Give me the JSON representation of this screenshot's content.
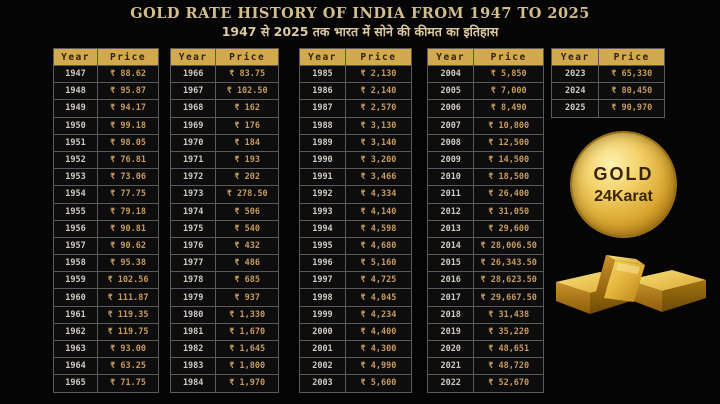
{
  "header": {
    "title": "GOLD RATE HISTORY OF INDIA FROM 1947 TO 2025",
    "subtitle": "1947 से 2025 तक भारत में सोने की कीमत का इतिहास"
  },
  "badge": {
    "line1": "GOLD",
    "line2": "24Karat"
  },
  "colors": {
    "background": "#050505",
    "title_text": "#d3bd8d",
    "subtitle_text": "#dcc9a0",
    "header_bg": "#d2a94f",
    "header_text": "#33230a",
    "year_text": "#cfc9c0",
    "price_text": "#c69a5e",
    "border": "#5a5a5a",
    "badge_text": "#3a2605"
  },
  "chart_data": {
    "type": "table",
    "title": "GOLD RATE HISTORY OF INDIA FROM 1947 TO 2025",
    "subtitle": "1947 से 2025 तक भारत में सोने की कीमत का इतिहास",
    "columns": [
      "Year",
      "Price"
    ],
    "tables": [
      {
        "year_range": "1947-1965",
        "rows": [
          [
            "1947",
            "₹ 88.62"
          ],
          [
            "1948",
            "₹ 95.87"
          ],
          [
            "1949",
            "₹ 94.17"
          ],
          [
            "1950",
            "₹ 99.18"
          ],
          [
            "1951",
            "₹ 98.05"
          ],
          [
            "1952",
            "₹ 76.81"
          ],
          [
            "1953",
            "₹ 73.06"
          ],
          [
            "1954",
            "₹ 77.75"
          ],
          [
            "1955",
            "₹ 79.18"
          ],
          [
            "1956",
            "₹ 90.81"
          ],
          [
            "1957",
            "₹ 90.62"
          ],
          [
            "1958",
            "₹ 95.38"
          ],
          [
            "1959",
            "₹ 102.56"
          ],
          [
            "1960",
            "₹ 111.87"
          ],
          [
            "1961",
            "₹ 119.35"
          ],
          [
            "1962",
            "₹ 119.75"
          ],
          [
            "1963",
            "₹ 93.00"
          ],
          [
            "1964",
            "₹ 63.25"
          ],
          [
            "1965",
            "₹ 71.75"
          ]
        ]
      },
      {
        "year_range": "1966-1984",
        "rows": [
          [
            "1966",
            "₹ 83.75"
          ],
          [
            "1967",
            "₹ 102.50"
          ],
          [
            "1968",
            "₹ 162"
          ],
          [
            "1969",
            "₹ 176"
          ],
          [
            "1970",
            "₹ 184"
          ],
          [
            "1971",
            "₹ 193"
          ],
          [
            "1972",
            "₹ 202"
          ],
          [
            "1973",
            "₹ 278.50"
          ],
          [
            "1974",
            "₹ 506"
          ],
          [
            "1975",
            "₹ 540"
          ],
          [
            "1976",
            "₹ 432"
          ],
          [
            "1977",
            "₹ 486"
          ],
          [
            "1978",
            "₹ 685"
          ],
          [
            "1979",
            "₹ 937"
          ],
          [
            "1980",
            "₹ 1,330"
          ],
          [
            "1981",
            "₹ 1,670"
          ],
          [
            "1982",
            "₹ 1,645"
          ],
          [
            "1983",
            "₹ 1,800"
          ],
          [
            "1984",
            "₹ 1,970"
          ]
        ]
      },
      {
        "year_range": "1985-2003",
        "rows": [
          [
            "1985",
            "₹ 2,130"
          ],
          [
            "1986",
            "₹ 2,140"
          ],
          [
            "1987",
            "₹ 2,570"
          ],
          [
            "1988",
            "₹ 3,130"
          ],
          [
            "1989",
            "₹ 3,140"
          ],
          [
            "1990",
            "₹ 3,200"
          ],
          [
            "1991",
            "₹ 3,466"
          ],
          [
            "1992",
            "₹ 4,334"
          ],
          [
            "1993",
            "₹ 4,140"
          ],
          [
            "1994",
            "₹ 4,598"
          ],
          [
            "1995",
            "₹ 4,680"
          ],
          [
            "1996",
            "₹ 5,160"
          ],
          [
            "1997",
            "₹ 4,725"
          ],
          [
            "1998",
            "₹ 4,045"
          ],
          [
            "1999",
            "₹ 4,234"
          ],
          [
            "2000",
            "₹ 4,400"
          ],
          [
            "2001",
            "₹ 4,300"
          ],
          [
            "2002",
            "₹ 4,990"
          ],
          [
            "2003",
            "₹ 5,600"
          ]
        ]
      },
      {
        "year_range": "2004-2022",
        "rows": [
          [
            "2004",
            "₹ 5,850"
          ],
          [
            "2005",
            "₹ 7,000"
          ],
          [
            "2006",
            "₹ 8,490"
          ],
          [
            "2007",
            "₹ 10,800"
          ],
          [
            "2008",
            "₹ 12,500"
          ],
          [
            "2009",
            "₹ 14,500"
          ],
          [
            "2010",
            "₹ 18,500"
          ],
          [
            "2011",
            "₹ 26,400"
          ],
          [
            "2012",
            "₹ 31,050"
          ],
          [
            "2013",
            "₹ 29,600"
          ],
          [
            "2014",
            "₹ 28,006.50"
          ],
          [
            "2015",
            "₹ 26,343.50"
          ],
          [
            "2016",
            "₹ 28,623.50"
          ],
          [
            "2017",
            "₹ 29,667.50"
          ],
          [
            "2018",
            "₹ 31,438"
          ],
          [
            "2019",
            "₹ 35,220"
          ],
          [
            "2020",
            "₹ 48,651"
          ],
          [
            "2021",
            "₹ 48,720"
          ],
          [
            "2022",
            "₹ 52,670"
          ]
        ]
      },
      {
        "year_range": "2023-2025",
        "rows": [
          [
            "2023",
            "₹ 65,330"
          ],
          [
            "2024",
            "₹ 80,450"
          ],
          [
            "2025",
            "₹ 90,970"
          ]
        ]
      }
    ]
  }
}
